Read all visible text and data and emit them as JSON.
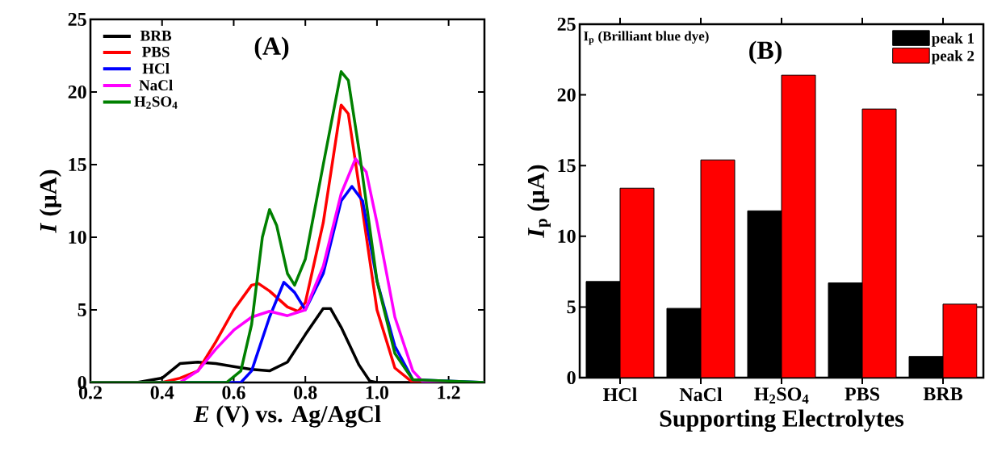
{
  "chart_data": [
    {
      "type": "line",
      "title": "(A)",
      "xlabel": "*E* (V) vs. Ag/AgCl",
      "ylabel": "*I* (µA)",
      "xlim": [
        0.2,
        1.3
      ],
      "ylim": [
        0,
        25
      ],
      "xticks": [
        0.2,
        0.4,
        0.6,
        0.8,
        {
          "value": 1.0,
          "label": "1.0"
        },
        1.2
      ],
      "yticks": [
        0,
        5,
        10,
        15,
        20,
        25
      ],
      "legend": "top left",
      "series": [
        {
          "name": "BRB",
          "color": "#000000",
          "x": [
            0.2,
            0.33,
            0.4,
            0.45,
            0.5,
            0.55,
            0.6,
            0.65,
            0.7,
            0.75,
            0.8,
            0.85,
            0.87,
            0.9,
            0.95,
            0.98,
            1.0,
            1.3
          ],
          "values": [
            0,
            0,
            0.3,
            1.3,
            1.4,
            1.3,
            1.1,
            0.9,
            0.8,
            1.4,
            3.3,
            5.1,
            5.1,
            3.8,
            1.2,
            0.1,
            0,
            0
          ]
        },
        {
          "name": "PBS",
          "color": "#ff0000",
          "x": [
            0.2,
            0.4,
            0.45,
            0.5,
            0.55,
            0.6,
            0.65,
            0.67,
            0.7,
            0.75,
            0.78,
            0.8,
            0.85,
            0.9,
            0.92,
            0.95,
            1.0,
            1.05,
            1.1,
            1.3
          ],
          "values": [
            0,
            0,
            0.3,
            0.8,
            2.8,
            5.0,
            6.7,
            6.8,
            6.3,
            5.2,
            4.9,
            5.5,
            11,
            19.1,
            18.5,
            13.5,
            5,
            1,
            0,
            0
          ]
        },
        {
          "name": "HCl",
          "color": "#0000ff",
          "x": [
            0.2,
            0.62,
            0.65,
            0.7,
            0.74,
            0.77,
            0.8,
            0.85,
            0.9,
            0.93,
            0.96,
            1.0,
            1.05,
            1.1,
            1.3
          ],
          "values": [
            0,
            0,
            0.8,
            4.5,
            6.9,
            6.2,
            5,
            7.5,
            12.5,
            13.5,
            12.5,
            7,
            2.5,
            0.2,
            0
          ]
        },
        {
          "name": "NaCl",
          "color": "#ff00ff",
          "x": [
            0.2,
            0.45,
            0.5,
            0.55,
            0.6,
            0.65,
            0.7,
            0.75,
            0.8,
            0.85,
            0.9,
            0.94,
            0.97,
            1.0,
            1.05,
            1.1,
            1.13,
            1.3
          ],
          "values": [
            0,
            0,
            0.8,
            2.3,
            3.6,
            4.5,
            4.9,
            4.6,
            5.0,
            8,
            13,
            15.4,
            14.5,
            11,
            4.5,
            0.8,
            0,
            0
          ]
        },
        {
          "name": "H$_{2}$SO$_{4}$",
          "color": "#008000",
          "x": [
            0.2,
            0.58,
            0.62,
            0.65,
            0.68,
            0.7,
            0.72,
            0.75,
            0.77,
            0.8,
            0.85,
            0.9,
            0.92,
            0.95,
            1.0,
            1.05,
            1.1,
            1.3
          ],
          "values": [
            0,
            0,
            0.8,
            4,
            10,
            11.9,
            10.8,
            7.5,
            6.7,
            8.5,
            15,
            21.4,
            20.8,
            16,
            7,
            2,
            0.2,
            0
          ]
        }
      ]
    },
    {
      "type": "bar",
      "title": "(B)",
      "xlabel": "Supporting Electrolytes",
      "ylabel": "*I*$_{p}$ (µA)",
      "ylim": [
        0,
        25
      ],
      "yticks": [
        0,
        5,
        10,
        15,
        20,
        25
      ],
      "legend": "top right",
      "annotations": [
        "I$_{p}$ (Brilliant blue dye)"
      ],
      "categories": [
        "HCl",
        "NaCl",
        "H$_{2}$SO$_{4}$",
        "PBS",
        "BRB"
      ],
      "series": [
        {
          "name": "peak 1",
          "color": "#000000",
          "values": [
            6.8,
            4.9,
            11.8,
            6.7,
            1.5
          ]
        },
        {
          "name": "peak 2",
          "color": "#ff0000",
          "values": [
            13.4,
            15.4,
            21.4,
            19.0,
            5.2
          ]
        }
      ]
    }
  ]
}
